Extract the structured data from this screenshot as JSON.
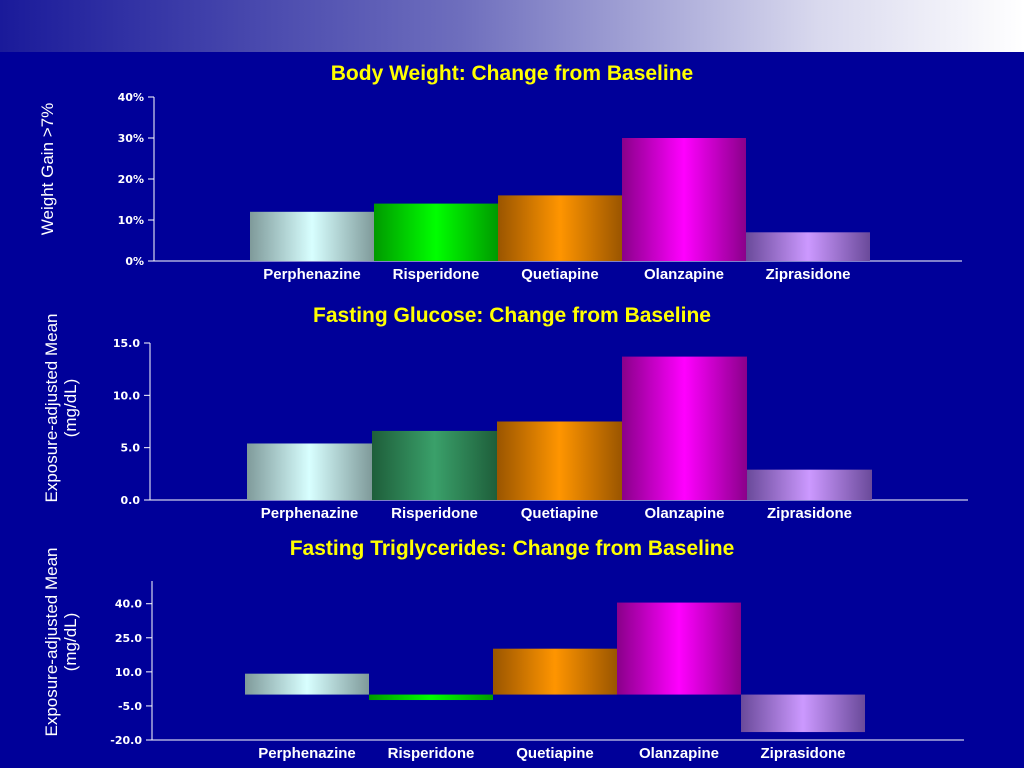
{
  "colors": {
    "background": "#000099",
    "title": "#ffff00",
    "text": "#ffffff",
    "bars": {
      "Perphenazine": [
        "#7f9a9a",
        "#d8ffff",
        "#7f9a9a"
      ],
      "Risperidone": [
        "#009a00",
        "#00ff00",
        "#009a00"
      ],
      "RisperidoneGlucose": [
        "#1e5e3a",
        "#3aa06a",
        "#1e5e3a"
      ],
      "Quetiapine": [
        "#9a5500",
        "#ff9500",
        "#9a5500"
      ],
      "Olanzapine": [
        "#8a008a",
        "#ff00ff",
        "#8a008a"
      ],
      "Ziprasidone": [
        "#6a4a9a",
        "#cc99ff",
        "#6a4a9a"
      ]
    }
  },
  "chart_data": [
    {
      "type": "bar",
      "title": "Body Weight: Change from Baseline",
      "ylabel": "Weight Gain >7%",
      "categories": [
        "Perphenazine",
        "Risperidone",
        "Quetiapine",
        "Olanzapine",
        "Ziprasidone"
      ],
      "values": [
        12,
        14,
        16,
        30,
        7
      ],
      "ylim": [
        0,
        40
      ],
      "yticks": [
        0,
        10,
        20,
        30,
        40
      ],
      "ytick_labels": [
        "0%",
        "10%",
        "20%",
        "30%",
        "40%"
      ],
      "bar_colors": [
        "Perphenazine",
        "Risperidone",
        "Quetiapine",
        "Olanzapine",
        "Ziprasidone"
      ]
    },
    {
      "type": "bar",
      "title": "Fasting Glucose: Change from Baseline",
      "ylabel": "Exposure-adjusted Mean\n(mg/dL)",
      "categories": [
        "Perphenazine",
        "Risperidone",
        "Quetiapine",
        "Olanzapine",
        "Ziprasidone"
      ],
      "values": [
        5.4,
        6.6,
        7.5,
        13.7,
        2.9
      ],
      "ylim": [
        0,
        15
      ],
      "yticks": [
        0,
        5,
        10,
        15
      ],
      "ytick_labels": [
        "0.0",
        "5.0",
        "10.0",
        "15.0"
      ],
      "bar_colors": [
        "Perphenazine",
        "RisperidoneGlucose",
        "Quetiapine",
        "Olanzapine",
        "Ziprasidone"
      ]
    },
    {
      "type": "bar",
      "title": "Fasting Triglycerides: Change from Baseline",
      "ylabel": "Exposure-adjusted Mean\n(mg/dL)",
      "categories": [
        "Perphenazine",
        "Risperidone",
        "Quetiapine",
        "Olanzapine",
        "Ziprasidone"
      ],
      "values": [
        9.2,
        -2.4,
        20.2,
        40.5,
        -16.5
      ],
      "ylim": [
        -20,
        50
      ],
      "yticks": [
        -20,
        -5,
        10,
        25,
        40
      ],
      "ytick_labels": [
        "-20.0",
        "-5.0",
        "10.0",
        "25.0",
        "40.0"
      ],
      "bar_colors": [
        "Perphenazine",
        "Risperidone",
        "Quetiapine",
        "Olanzapine",
        "Ziprasidone"
      ]
    }
  ]
}
